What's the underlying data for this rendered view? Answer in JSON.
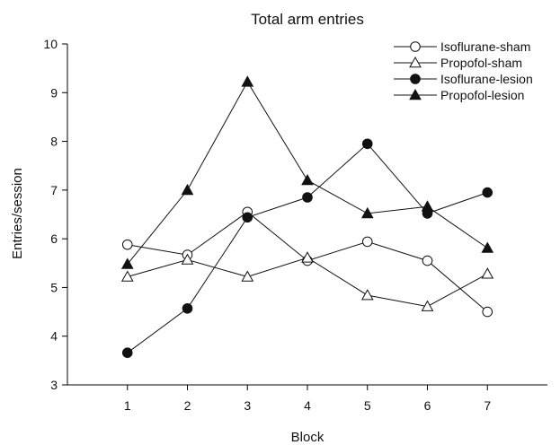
{
  "chart_data": {
    "type": "line",
    "title": "Total arm entries",
    "xlabel": "Block",
    "ylabel": "Entries/session",
    "x": [
      1,
      2,
      3,
      4,
      5,
      6,
      7
    ],
    "xlim": [
      0,
      8
    ],
    "ylim": [
      3,
      10
    ],
    "yticks": [
      3,
      4,
      5,
      6,
      7,
      8,
      9,
      10
    ],
    "grid": false,
    "legend": "top-right",
    "series": [
      {
        "name": "Isoflurane-sham",
        "marker": "circle-open",
        "values": [
          5.88,
          5.67,
          6.55,
          5.55,
          5.94,
          5.55,
          4.5
        ]
      },
      {
        "name": "Propofol-sham",
        "marker": "triangle-open",
        "values": [
          5.22,
          5.57,
          5.22,
          5.61,
          4.84,
          4.61,
          5.28
        ]
      },
      {
        "name": "Isoflurane-lesion",
        "marker": "circle-filled",
        "values": [
          3.66,
          4.57,
          6.44,
          6.85,
          7.95,
          6.52,
          6.95
        ]
      },
      {
        "name": "Propofol-lesion",
        "marker": "triangle-filled",
        "values": [
          5.48,
          7.0,
          9.22,
          7.2,
          6.52,
          6.66,
          5.81
        ]
      }
    ]
  }
}
